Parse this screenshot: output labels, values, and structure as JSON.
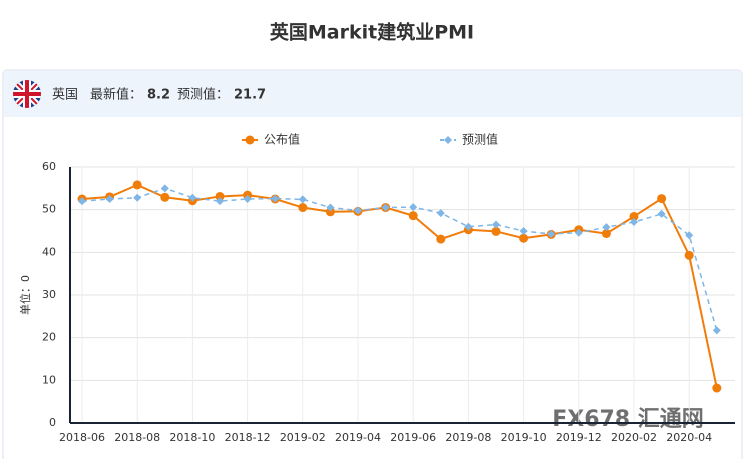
{
  "header": {
    "country": "英国",
    "latest_label": "最新值：",
    "latest": "8.2",
    "forecast_label": "预测值：",
    "forecast": "21.7"
  },
  "watermark": "FX678 汇通网",
  "chart_data": {
    "type": "line",
    "title": "英国Markit建筑业PMI",
    "y_label": "单位：0",
    "categories": [
      "2018-06",
      null,
      "2018-08",
      null,
      "2018-10",
      null,
      "2018-12",
      null,
      "2019-02",
      null,
      "2019-04",
      null,
      "2019-06",
      null,
      "2019-08",
      null,
      "2019-10",
      null,
      "2019-12",
      null,
      "2020-02",
      null,
      "2020-04",
      null
    ],
    "series": [
      {
        "name": "公布值",
        "color": "#f07c0a",
        "values": [
          52.5,
          53.0,
          55.8,
          52.9,
          52.1,
          53.1,
          53.4,
          52.5,
          50.5,
          49.5,
          49.6,
          50.5,
          48.6,
          43.1,
          45.3,
          44.9,
          43.3,
          44.2,
          45.3,
          44.4,
          48.4,
          52.6,
          39.3,
          8.2
        ]
      },
      {
        "name": "预测值",
        "color": "#7fb6e6",
        "values": [
          52.0,
          52.5,
          52.8,
          55.0,
          52.8,
          52.0,
          52.5,
          52.6,
          52.4,
          50.5,
          49.8,
          50.5,
          50.6,
          49.2,
          46.0,
          46.5,
          45.0,
          44.3,
          44.6,
          45.9,
          47.1,
          49.0,
          44.0,
          21.7
        ]
      }
    ],
    "ylim": [
      0,
      60
    ],
    "yticks": [
      0,
      10,
      20,
      30,
      40,
      50,
      60
    ],
    "grid": true
  }
}
